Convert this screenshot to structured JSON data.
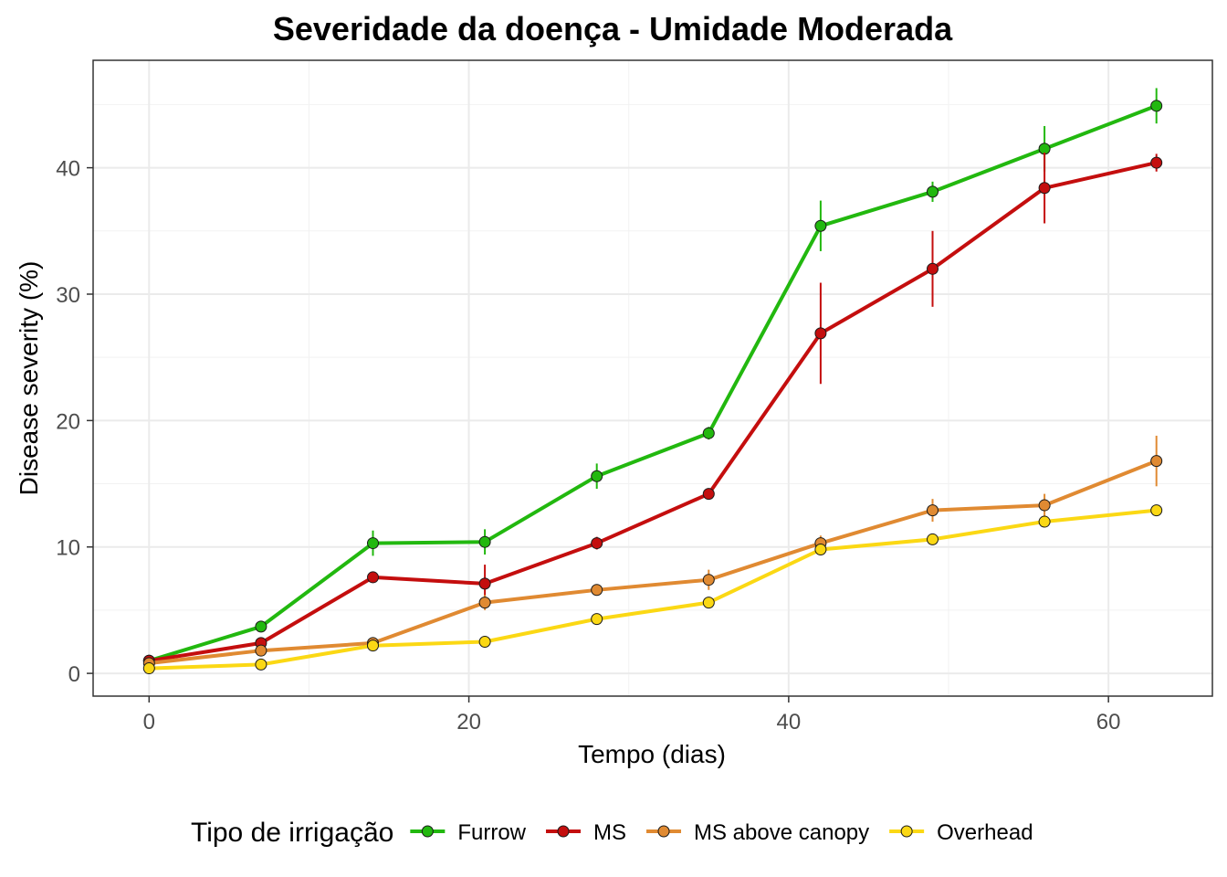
{
  "chart_data": {
    "type": "line",
    "title": "Severidade da doença - Umidade Moderada",
    "xlabel": "Tempo (dias)",
    "ylabel": "Disease severity (%)",
    "xlim": [
      -3.5,
      66.5
    ],
    "ylim": [
      -1.8,
      48.5
    ],
    "x_ticks": [
      0,
      20,
      40,
      60
    ],
    "y_ticks": [
      0,
      10,
      20,
      30,
      40
    ],
    "grid": true,
    "legend": {
      "title": "Tipo de irrigação",
      "position": "bottom"
    },
    "x": [
      0,
      7,
      14,
      21,
      28,
      35,
      42,
      49,
      56,
      63
    ],
    "series": [
      {
        "name": "Furrow",
        "color": "#22b80f",
        "values": [
          1.0,
          3.7,
          10.3,
          10.4,
          15.6,
          19.0,
          35.4,
          38.1,
          41.5,
          44.9
        ],
        "err": [
          0.2,
          0.3,
          1.0,
          1.0,
          1.0,
          0.5,
          2.0,
          0.8,
          1.8,
          1.4
        ]
      },
      {
        "name": "MS",
        "color": "#c40e0e",
        "values": [
          1.0,
          2.4,
          7.6,
          7.1,
          10.3,
          14.2,
          26.9,
          32.0,
          38.4,
          40.4
        ],
        "err": [
          0.2,
          0.3,
          0.4,
          1.5,
          0.5,
          0.4,
          4.0,
          3.0,
          2.8,
          0.7
        ]
      },
      {
        "name": "MS above canopy",
        "color": "#e08a32",
        "values": [
          0.8,
          1.8,
          2.4,
          5.6,
          6.6,
          7.4,
          10.3,
          12.9,
          13.3,
          16.8
        ],
        "err": [
          0.2,
          0.3,
          0.3,
          0.6,
          0.4,
          0.8,
          0.6,
          0.9,
          0.9,
          2.0
        ]
      },
      {
        "name": "Overhead",
        "color": "#fbd814",
        "values": [
          0.4,
          0.7,
          2.2,
          2.5,
          4.3,
          5.6,
          9.8,
          10.6,
          12.0,
          12.9
        ],
        "err": [
          0.1,
          0.2,
          0.3,
          0.2,
          0.3,
          0.3,
          0.4,
          0.3,
          0.3,
          0.3
        ]
      }
    ]
  }
}
